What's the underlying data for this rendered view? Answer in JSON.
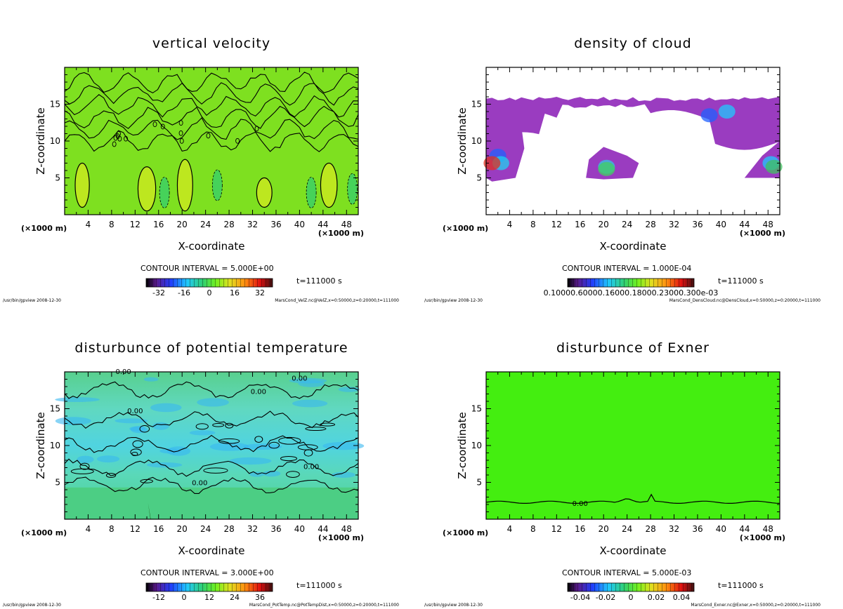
{
  "panels": [
    {
      "title": "vertical velocity",
      "xlabel": "X-coordinate",
      "ylabel": "Z-coordinate",
      "xunit_left": "(×1000 m)",
      "xunit_right": "(×1000 m)",
      "contour_interval": "CONTOUR INTERVAL = 5.000E+00",
      "time": "t=111000 s",
      "footer_left": "/usr/bin/gpview  2008-12-30",
      "footer_right": "MarsCond_VelZ.nc@VelZ,x=0:50000,z=0:20000,t=111000",
      "colorbar_ticks": [
        "-32",
        "-16",
        "0",
        "16",
        "32"
      ],
      "contour_labels": []
    },
    {
      "title": "density of cloud",
      "xlabel": "X-coordinate",
      "ylabel": "Z-coordinate",
      "xunit_left": "(×1000 m)",
      "xunit_right": "(×1000 m)",
      "contour_interval": "CONTOUR INTERVAL = 1.000E-04",
      "time": "t=111000 s",
      "footer_left": "/usr/bin/gpview  2008-12-30",
      "footer_right": "MarsCond_DensCloud.nc@DensCloud,x=0:50000,z=0:20000,t=111000",
      "colorbar_ticks": [
        "0.10000.60000.16000.18000.23000.300e-03"
      ],
      "contour_labels": []
    },
    {
      "title": "disturbunce of potential temperature",
      "xlabel": "X-coordinate",
      "ylabel": "Z-coordinate",
      "xunit_left": "(×1000 m)",
      "xunit_right": "(×1000 m)",
      "contour_interval": "CONTOUR INTERVAL = 3.000E+00",
      "time": "t=111000 s",
      "footer_left": "/usr/bin/gpview  2008-12-30",
      "footer_right": "MarsCond_PotTemp.nc@PotTempDist,x=0:50000,z=0:20000,t=111000",
      "colorbar_ticks": [
        "-12",
        "0",
        "12",
        "24",
        "36"
      ],
      "contour_labels": [
        "0.00",
        "0.00",
        "0.00",
        "0.00",
        "0.00",
        "0.00"
      ]
    },
    {
      "title": "disturbunce of Exner",
      "xlabel": "X-coordinate",
      "ylabel": "Z-coordinate",
      "xunit_left": "(×1000 m)",
      "xunit_right": "(×1000 m)",
      "contour_interval": "CONTOUR INTERVAL = 5.000E-03",
      "time": "t=111000 s",
      "footer_left": "/usr/bin/gpview  2008-12-30",
      "footer_right": "MarsCond_Exner.nc@Exner,x=0:50000,z=0:20000,t=111000",
      "colorbar_ticks": [
        "-0.04",
        "-0.02",
        "0",
        "0.02",
        "0.04"
      ],
      "contour_labels": [
        "0.00"
      ]
    }
  ],
  "chart_data": [
    {
      "type": "heatmap",
      "title": "vertical velocity",
      "xlabel": "X-coordinate",
      "ylabel": "Z-coordinate",
      "xlim": [
        0,
        50
      ],
      "ylim": [
        0,
        20
      ],
      "xticks": [
        4,
        8,
        12,
        16,
        20,
        24,
        28,
        32,
        36,
        40,
        44,
        48
      ],
      "yticks": [
        5,
        10,
        15
      ],
      "colorbar": {
        "ticks": [
          -32,
          -16,
          0,
          16,
          32
        ]
      },
      "contour_interval": 5.0
    },
    {
      "type": "heatmap",
      "title": "density of cloud",
      "xlabel": "X-coordinate",
      "ylabel": "Z-coordinate",
      "xlim": [
        0,
        50
      ],
      "ylim": [
        0,
        20
      ],
      "xticks": [
        4,
        8,
        12,
        16,
        20,
        24,
        28,
        32,
        36,
        40,
        44,
        48
      ],
      "yticks": [
        5,
        10,
        15
      ],
      "contour_interval": 0.0001
    },
    {
      "type": "heatmap",
      "title": "disturbunce of potential temperature",
      "xlabel": "X-coordinate",
      "ylabel": "Z-coordinate",
      "xlim": [
        0,
        50
      ],
      "ylim": [
        0,
        20
      ],
      "xticks": [
        4,
        8,
        12,
        16,
        20,
        24,
        28,
        32,
        36,
        40,
        44,
        48
      ],
      "yticks": [
        5,
        10,
        15
      ],
      "colorbar": {
        "ticks": [
          -12,
          0,
          12,
          24,
          36
        ]
      },
      "contour_interval": 3.0
    },
    {
      "type": "heatmap",
      "title": "disturbunce of Exner",
      "xlabel": "X-coordinate",
      "ylabel": "Z-coordinate",
      "xlim": [
        0,
        50
      ],
      "ylim": [
        0,
        20
      ],
      "xticks": [
        4,
        8,
        12,
        16,
        20,
        24,
        28,
        32,
        36,
        40,
        44,
        48
      ],
      "yticks": [
        5,
        10,
        15
      ],
      "colorbar": {
        "ticks": [
          -0.04,
          -0.02,
          0,
          0.02,
          0.04
        ]
      },
      "contour_interval": 0.005
    }
  ]
}
